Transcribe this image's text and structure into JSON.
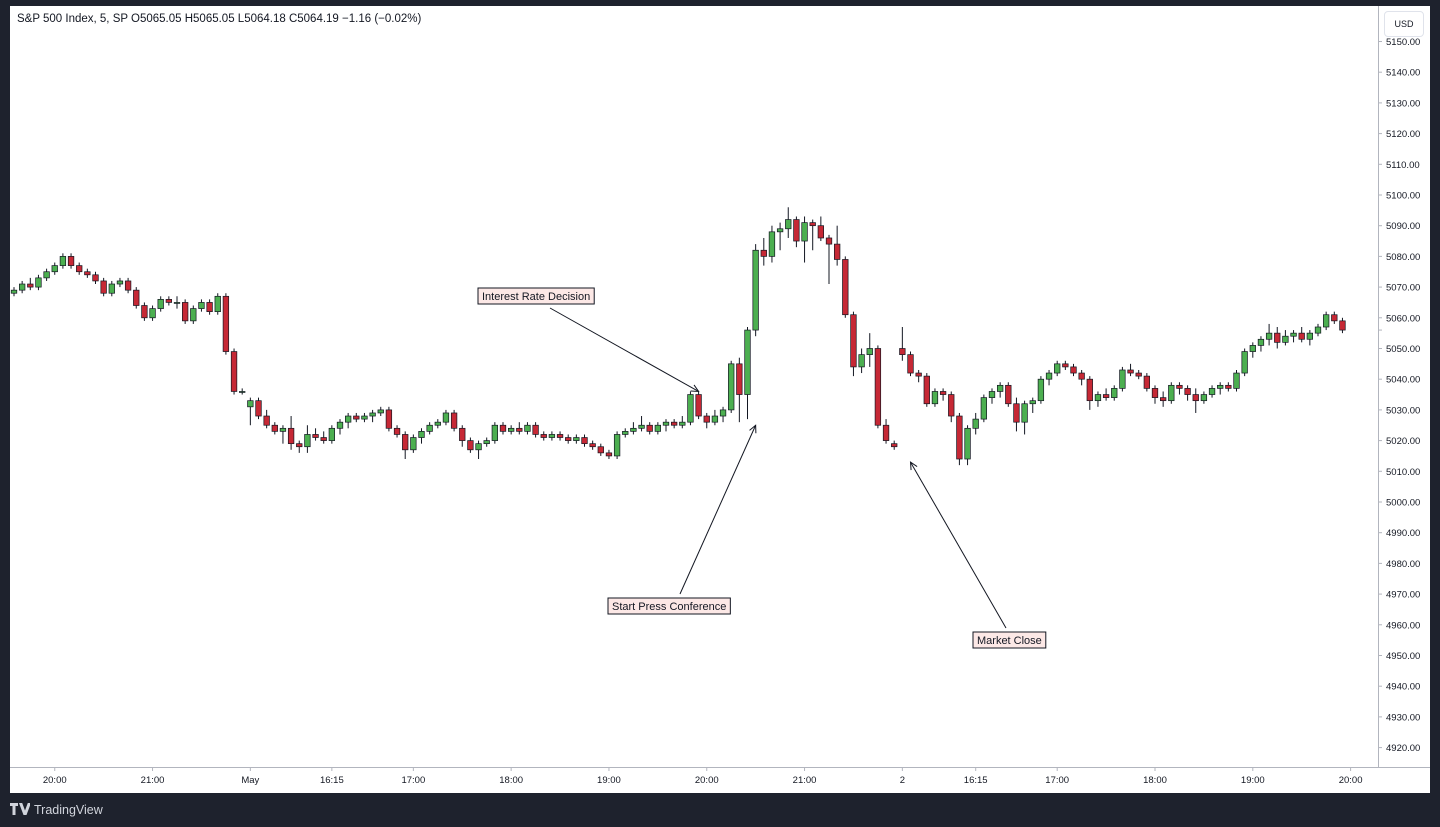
{
  "legend": "S&P 500 Index, 5, SP  O5065.05  H5065.05  L5064.18  C5064.19  −1.16 (−0.02%)",
  "currency": "USD",
  "footer": {
    "logo_icon": "tradingview-logo-icon",
    "brand": "TradingView"
  },
  "colors": {
    "up": "#4caf50",
    "down": "#c62835",
    "wick": "#131722",
    "annotation_bg": "#fce8e6",
    "background": "#1e222d"
  },
  "chart_data": {
    "type": "candlestick",
    "title": "S&P 500 Index, 5, SP",
    "ylim": [
      4915,
      5157
    ],
    "y_ticks": [
      4920,
      4930,
      4940,
      4950,
      4960,
      4970,
      4980,
      4990,
      5000,
      5010,
      5020,
      5030,
      5040,
      5050,
      5060,
      5070,
      5080,
      5090,
      5100,
      5110,
      5120,
      5130,
      5140,
      5150
    ],
    "x_tick_labels": [
      "20:00",
      "21:00",
      "May",
      "16:15",
      "17:00",
      "18:00",
      "19:00",
      "20:00",
      "21:00",
      "2",
      "16:15",
      "17:00",
      "18:00",
      "19:00",
      "20:00"
    ],
    "x_tick_bar_index": [
      5,
      17,
      29,
      39,
      49,
      61,
      73,
      85,
      97,
      109,
      118,
      128,
      140,
      152,
      164
    ],
    "close_marker": 5056,
    "annotations": [
      {
        "label": "Interest Rate Decision",
        "points_to_bar": 84,
        "points_to_price": 5036
      },
      {
        "label": "Start Press Conference",
        "points_to_bar": 91,
        "points_to_price": 5025
      },
      {
        "label": "Market Close",
        "points_to_bar": 110,
        "points_to_price": 5013
      }
    ],
    "ohlc": [
      [
        5068,
        5070,
        5067,
        5069
      ],
      [
        5069,
        5072,
        5068,
        5071
      ],
      [
        5071,
        5073,
        5069,
        5070
      ],
      [
        5070,
        5074,
        5069,
        5073
      ],
      [
        5073,
        5076,
        5072,
        5075
      ],
      [
        5075,
        5078,
        5074,
        5077
      ],
      [
        5077,
        5081,
        5076,
        5080
      ],
      [
        5080,
        5081,
        5076,
        5077
      ],
      [
        5077,
        5078,
        5074,
        5075
      ],
      [
        5075,
        5076,
        5073,
        5074
      ],
      [
        5074,
        5075,
        5071,
        5072
      ],
      [
        5072,
        5073,
        5067,
        5068
      ],
      [
        5068,
        5072,
        5067,
        5071
      ],
      [
        5071,
        5073,
        5070,
        5072
      ],
      [
        5072,
        5073,
        5068,
        5069
      ],
      [
        5069,
        5070,
        5063,
        5064
      ],
      [
        5064,
        5065,
        5059,
        5060
      ],
      [
        5060,
        5064,
        5059,
        5063
      ],
      [
        5063,
        5067,
        5062,
        5066
      ],
      [
        5066,
        5067,
        5064,
        5065
      ],
      [
        5065,
        5067,
        5063,
        5065
      ],
      [
        5065,
        5066,
        5058,
        5059
      ],
      [
        5059,
        5064,
        5058,
        5063
      ],
      [
        5063,
        5066,
        5062,
        5065
      ],
      [
        5065,
        5066,
        5061,
        5062
      ],
      [
        5062,
        5068,
        5061,
        5067
      ],
      [
        5067,
        5068,
        5048,
        5049
      ],
      [
        5049,
        5050,
        5035,
        5036
      ],
      [
        5036,
        5037,
        5035,
        5036
      ],
      [
        5031,
        5034,
        5025,
        5033
      ],
      [
        5033,
        5034,
        5027,
        5028
      ],
      [
        5028,
        5030,
        5024,
        5025
      ],
      [
        5025,
        5026,
        5022,
        5023
      ],
      [
        5023,
        5025,
        5019,
        5024
      ],
      [
        5024,
        5028,
        5017,
        5019
      ],
      [
        5019,
        5020,
        5016,
        5018
      ],
      [
        5018,
        5025,
        5016,
        5022
      ],
      [
        5022,
        5024,
        5020,
        5021
      ],
      [
        5021,
        5023,
        5019,
        5020
      ],
      [
        5020,
        5025,
        5019,
        5024
      ],
      [
        5024,
        5027,
        5022,
        5026
      ],
      [
        5026,
        5029,
        5024,
        5028
      ],
      [
        5028,
        5029,
        5026,
        5027
      ],
      [
        5027,
        5029,
        5026,
        5028
      ],
      [
        5028,
        5030,
        5026,
        5029
      ],
      [
        5029,
        5031,
        5028,
        5030
      ],
      [
        5030,
        5031,
        5023,
        5024
      ],
      [
        5024,
        5025,
        5021,
        5022
      ],
      [
        5022,
        5023,
        5014,
        5017
      ],
      [
        5017,
        5022,
        5016,
        5021
      ],
      [
        5021,
        5024,
        5019,
        5023
      ],
      [
        5023,
        5026,
        5022,
        5025
      ],
      [
        5025,
        5027,
        5024,
        5026
      ],
      [
        5026,
        5030,
        5025,
        5029
      ],
      [
        5029,
        5030,
        5023,
        5024
      ],
      [
        5024,
        5025,
        5018,
        5020
      ],
      [
        5020,
        5021,
        5016,
        5017
      ],
      [
        5017,
        5020,
        5014,
        5019
      ],
      [
        5019,
        5021,
        5018,
        5020
      ],
      [
        5020,
        5026,
        5019,
        5025
      ],
      [
        5025,
        5026,
        5022,
        5023
      ],
      [
        5023,
        5025,
        5022,
        5024
      ],
      [
        5024,
        5026,
        5022,
        5023
      ],
      [
        5023,
        5026,
        5022,
        5025
      ],
      [
        5025,
        5026,
        5021,
        5022
      ],
      [
        5022,
        5023,
        5020,
        5021
      ],
      [
        5021,
        5023,
        5020,
        5022
      ],
      [
        5022,
        5023,
        5020,
        5021
      ],
      [
        5021,
        5022,
        5019,
        5020
      ],
      [
        5020,
        5022,
        5019,
        5021
      ],
      [
        5021,
        5022,
        5018,
        5019
      ],
      [
        5019,
        5020,
        5017,
        5018
      ],
      [
        5018,
        5019,
        5015,
        5016
      ],
      [
        5016,
        5017,
        5014,
        5015
      ],
      [
        5015,
        5023,
        5014,
        5022
      ],
      [
        5022,
        5024,
        5021,
        5023
      ],
      [
        5023,
        5026,
        5022,
        5024
      ],
      [
        5024,
        5028,
        5023,
        5025
      ],
      [
        5025,
        5026,
        5022,
        5023
      ],
      [
        5023,
        5026,
        5022,
        5025
      ],
      [
        5025,
        5027,
        5023,
        5026
      ],
      [
        5026,
        5027,
        5024,
        5025
      ],
      [
        5025,
        5028,
        5024,
        5026
      ],
      [
        5026,
        5036,
        5025,
        5035
      ],
      [
        5035,
        5036,
        5027,
        5028
      ],
      [
        5028,
        5029,
        5024,
        5026
      ],
      [
        5026,
        5030,
        5025,
        5028
      ],
      [
        5028,
        5031,
        5026,
        5030
      ],
      [
        5030,
        5046,
        5029,
        5045
      ],
      [
        5045,
        5047,
        5026,
        5035
      ],
      [
        5035,
        5057,
        5027,
        5056
      ],
      [
        5056,
        5084,
        5054,
        5082
      ],
      [
        5082,
        5086,
        5077,
        5080
      ],
      [
        5080,
        5090,
        5078,
        5088
      ],
      [
        5088,
        5091,
        5082,
        5089
      ],
      [
        5089,
        5096,
        5086,
        5092
      ],
      [
        5092,
        5093,
        5083,
        5085
      ],
      [
        5085,
        5093,
        5078,
        5091
      ],
      [
        5091,
        5092,
        5082,
        5090
      ],
      [
        5090,
        5093,
        5085,
        5086
      ],
      [
        5086,
        5087,
        5071,
        5084
      ],
      [
        5084,
        5090,
        5077,
        5079
      ],
      [
        5079,
        5080,
        5060,
        5061
      ],
      [
        5061,
        5062,
        5041,
        5044
      ],
      [
        5044,
        5050,
        5042,
        5048
      ],
      [
        5048,
        5055,
        5044,
        5050
      ],
      [
        5050,
        5051,
        5024,
        5025
      ],
      [
        5025,
        5027,
        5019,
        5020
      ],
      [
        5019,
        5020,
        5017,
        5018
      ],
      [
        5050,
        5057,
        5046,
        5048
      ],
      [
        5048,
        5049,
        5041,
        5042
      ],
      [
        5042,
        5043,
        5039,
        5041
      ],
      [
        5041,
        5042,
        5031,
        5032
      ],
      [
        5032,
        5037,
        5031,
        5036
      ],
      [
        5036,
        5037,
        5033,
        5035
      ],
      [
        5035,
        5036,
        5026,
        5028
      ],
      [
        5028,
        5029,
        5012,
        5014
      ],
      [
        5014,
        5025,
        5012,
        5024
      ],
      [
        5024,
        5029,
        5022,
        5027
      ],
      [
        5027,
        5035,
        5026,
        5034
      ],
      [
        5034,
        5037,
        5032,
        5036
      ],
      [
        5036,
        5039,
        5034,
        5038
      ],
      [
        5038,
        5039,
        5031,
        5032
      ],
      [
        5032,
        5034,
        5023,
        5026
      ],
      [
        5026,
        5033,
        5022,
        5032
      ],
      [
        5032,
        5034,
        5029,
        5033
      ],
      [
        5033,
        5041,
        5032,
        5040
      ],
      [
        5040,
        5043,
        5038,
        5042
      ],
      [
        5042,
        5046,
        5041,
        5045
      ],
      [
        5045,
        5046,
        5043,
        5044
      ],
      [
        5044,
        5045,
        5041,
        5042
      ],
      [
        5042,
        5043,
        5038,
        5040
      ],
      [
        5040,
        5041,
        5030,
        5033
      ],
      [
        5033,
        5036,
        5031,
        5035
      ],
      [
        5035,
        5037,
        5033,
        5034
      ],
      [
        5034,
        5038,
        5033,
        5037
      ],
      [
        5037,
        5044,
        5036,
        5043
      ],
      [
        5043,
        5045,
        5041,
        5042
      ],
      [
        5042,
        5043,
        5040,
        5041
      ],
      [
        5041,
        5042,
        5036,
        5037
      ],
      [
        5037,
        5038,
        5032,
        5034
      ],
      [
        5034,
        5036,
        5031,
        5033
      ],
      [
        5033,
        5039,
        5032,
        5038
      ],
      [
        5038,
        5039,
        5035,
        5037
      ],
      [
        5037,
        5038,
        5033,
        5035
      ],
      [
        5035,
        5037,
        5029,
        5033
      ],
      [
        5033,
        5036,
        5032,
        5035
      ],
      [
        5035,
        5038,
        5034,
        5037
      ],
      [
        5037,
        5039,
        5035,
        5038
      ],
      [
        5038,
        5039,
        5036,
        5037
      ],
      [
        5037,
        5043,
        5036,
        5042
      ],
      [
        5042,
        5050,
        5041,
        5049
      ],
      [
        5049,
        5052,
        5047,
        5051
      ],
      [
        5051,
        5054,
        5049,
        5053
      ],
      [
        5053,
        5058,
        5051,
        5055
      ],
      [
        5055,
        5057,
        5050,
        5052
      ],
      [
        5052,
        5056,
        5051,
        5054
      ],
      [
        5054,
        5056,
        5052,
        5055
      ],
      [
        5055,
        5057,
        5052,
        5053
      ],
      [
        5053,
        5056,
        5051,
        5055
      ],
      [
        5055,
        5058,
        5054,
        5057
      ],
      [
        5057,
        5062,
        5056,
        5061
      ],
      [
        5061,
        5062,
        5058,
        5059
      ],
      [
        5059,
        5060,
        5055,
        5056
      ]
    ]
  }
}
